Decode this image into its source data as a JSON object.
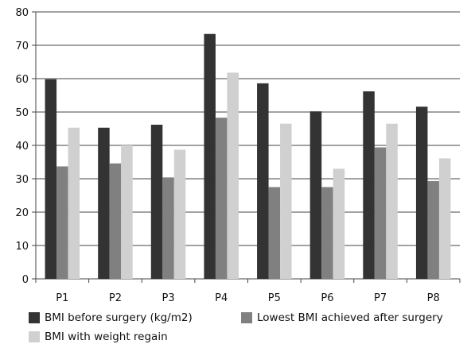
{
  "chart_data": {
    "type": "bar",
    "categories": [
      "P1",
      "P2",
      "P3",
      "P4",
      "P5",
      "P6",
      "P7",
      "P8"
    ],
    "series": [
      {
        "name": "BMI before surgery (kg/m2)",
        "color": "#333333",
        "values": [
          59.8,
          45.3,
          46.2,
          73.4,
          58.6,
          50.2,
          56.2,
          51.6
        ]
      },
      {
        "name": "Lowest BMI achieved after surgery",
        "color": "#808080",
        "values": [
          33.7,
          34.6,
          30.4,
          48.3,
          27.5,
          27.5,
          39.4,
          29.3
        ]
      },
      {
        "name": "BMI with weight regain",
        "color": "#d0d0d0",
        "values": [
          45.3,
          40.0,
          38.7,
          61.8,
          46.5,
          33.0,
          46.5,
          36.1
        ]
      }
    ],
    "ylim": [
      0,
      80
    ],
    "yticks": [
      0,
      10,
      20,
      30,
      40,
      50,
      60,
      70,
      80
    ],
    "grid": true,
    "legend_position": "bottom",
    "title": "",
    "xlabel": "",
    "ylabel": ""
  }
}
